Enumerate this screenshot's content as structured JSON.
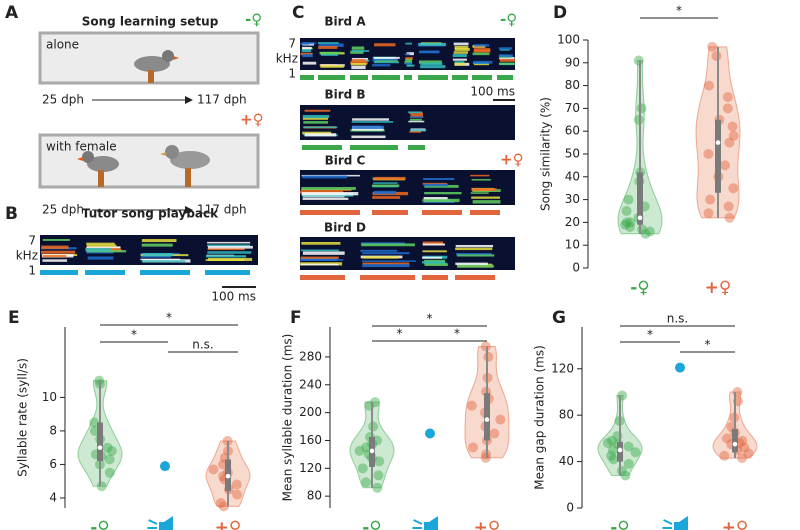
{
  "setup": {
    "panel": "A",
    "title": "Song learning setup",
    "conditions": [
      {
        "badge": "-♀",
        "label": "alone",
        "start": "25 dph",
        "end": "117 dph"
      },
      {
        "badge": "+♀",
        "label": "with female",
        "start": "25 dph",
        "end": "117 dph"
      }
    ]
  },
  "playback": {
    "panel": "B",
    "title": "Tutor song playback",
    "axis_top": "7",
    "axis_unit": "kHz",
    "axis_bottom": "1",
    "scale": "100 ms"
  },
  "spectrograms": {
    "panel": "C",
    "axis_top": "7",
    "axis_unit": "kHz",
    "axis_bottom": "1",
    "scale": "100 ms",
    "birds": [
      {
        "name": "Bird A",
        "badge": "-♀"
      },
      {
        "name": "Bird B"
      },
      {
        "name": "Bird C",
        "badge": "+♀"
      },
      {
        "name": "Bird D"
      }
    ]
  },
  "chart_data": [
    {
      "type": "violin",
      "panel": "D",
      "y_label": "Song similarity (%)",
      "ylim": [
        0,
        100
      ],
      "yticks": [
        0,
        10,
        20,
        30,
        40,
        50,
        60,
        70,
        80,
        90,
        100
      ],
      "categories": [
        "-♀",
        "+♀"
      ],
      "groups": [
        {
          "color": "#3aa84a",
          "values": [
            91,
            70,
            65,
            42,
            38,
            30,
            27,
            25,
            22,
            20,
            19,
            18,
            17,
            15,
            16,
            20
          ],
          "box": [
            15,
            19,
            22,
            42,
            91
          ]
        },
        {
          "color": "#e2663d",
          "values": [
            97,
            93,
            80,
            75,
            70,
            65,
            62,
            58,
            55,
            50,
            45,
            40,
            35,
            30,
            27,
            24,
            22
          ],
          "box": [
            22,
            33,
            55,
            65,
            97
          ]
        }
      ],
      "significance": [
        "*"
      ]
    },
    {
      "type": "violin",
      "panel": "E",
      "y_label": "Syllable rate (syll/s)",
      "ylim": [
        3.4,
        14.2
      ],
      "yticks": [
        4,
        6,
        8,
        10
      ],
      "categories": [
        "-♀",
        null,
        "+♀"
      ],
      "groups": [
        {
          "color": "#3aa84a",
          "values": [
            11,
            10.8,
            8.5,
            8,
            7.5,
            7,
            6.8,
            6.6,
            6.5,
            6.3,
            6,
            5.5,
            4.7
          ],
          "box": [
            4.7,
            6.2,
            7,
            8.5,
            11
          ]
        },
        {
          "color": "#1ba6d9",
          "values": [
            5.9
          ]
        },
        {
          "color": "#e2663d",
          "values": [
            7.4,
            6.8,
            6.4,
            6,
            5.7,
            5.5,
            5.3,
            5.1,
            4.8,
            4.5,
            4.2,
            3.7,
            3.5
          ],
          "box": [
            3.5,
            4.4,
            5.3,
            6.3,
            7.4
          ]
        }
      ],
      "significance": [
        "*",
        "*",
        "n.s."
      ]
    },
    {
      "type": "violin",
      "panel": "F",
      "y_label": "Mean syllable duration (ms)",
      "ylim": [
        63,
        323
      ],
      "yticks": [
        80,
        120,
        160,
        200,
        240,
        280
      ],
      "categories": [
        "-♀",
        null,
        "+♀"
      ],
      "groups": [
        {
          "color": "#3aa84a",
          "values": [
            215,
            210,
            180,
            165,
            160,
            155,
            150,
            145,
            140,
            135,
            130,
            120,
            110,
            100,
            92
          ],
          "box": [
            92,
            122,
            145,
            165,
            215
          ]
        },
        {
          "color": "#1ba6d9",
          "values": [
            170
          ]
        },
        {
          "color": "#e2663d",
          "values": [
            295,
            280,
            250,
            230,
            220,
            210,
            200,
            190,
            180,
            170,
            160,
            150,
            140,
            135
          ],
          "box": [
            135,
            160,
            190,
            228,
            295
          ]
        }
      ],
      "significance": [
        "*",
        "*",
        "*"
      ]
    },
    {
      "type": "violin",
      "panel": "G",
      "y_label": "Mean gap duration (ms)",
      "ylim": [
        0,
        156
      ],
      "yticks": [
        0,
        40,
        80,
        120
      ],
      "categories": [
        "-♀",
        null,
        "+♀"
      ],
      "groups": [
        {
          "color": "#3aa84a",
          "values": [
            97,
            75,
            62,
            58,
            56,
            55,
            53,
            50,
            48,
            45,
            42,
            38,
            32,
            28
          ],
          "box": [
            28,
            40,
            50,
            57,
            97
          ]
        },
        {
          "color": "#1ba6d9",
          "values": [
            121
          ]
        },
        {
          "color": "#e2663d",
          "values": [
            100,
            92,
            78,
            70,
            65,
            60,
            58,
            56,
            55,
            52,
            50,
            47,
            45,
            43
          ],
          "box": [
            43,
            48,
            55,
            68,
            100
          ]
        }
      ],
      "significance": [
        "n.s.",
        "*",
        "*"
      ]
    }
  ]
}
